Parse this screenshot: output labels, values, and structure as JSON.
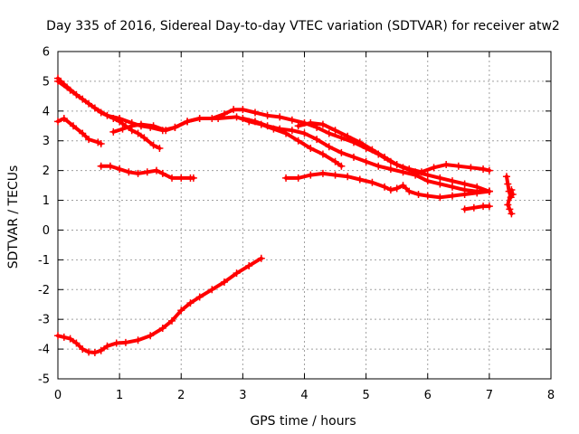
{
  "chart_data": {
    "type": "scatter",
    "title": "Day 335 of 2016, Sidereal Day-to-day VTEC variation (SDTVAR) for receiver atw2",
    "xlabel": "GPS time / hours",
    "ylabel": "SDTVAR / TECUs",
    "xlim": [
      0,
      8
    ],
    "ylim": [
      -5,
      6
    ],
    "x_ticks": [
      "0",
      "1",
      "2",
      "3",
      "4",
      "5",
      "6",
      "7",
      "8"
    ],
    "y_ticks": [
      "-5",
      "-4",
      "-3",
      "-2",
      "-1",
      "0",
      "1",
      "2",
      "3",
      "4",
      "5",
      "6"
    ],
    "grid": true,
    "legend": "none",
    "marker": "plus",
    "color": "#ff0000",
    "series": [
      {
        "points": [
          [
            0.0,
            5.1
          ],
          [
            0.1,
            4.9
          ],
          [
            0.3,
            4.55
          ],
          [
            0.5,
            4.25
          ],
          [
            0.7,
            3.95
          ],
          [
            0.9,
            3.75
          ],
          [
            1.0,
            3.65
          ],
          [
            1.1,
            3.5
          ],
          [
            1.2,
            3.35
          ],
          [
            1.3,
            3.25
          ],
          [
            1.4,
            3.1
          ],
          [
            1.55,
            2.85
          ],
          [
            1.65,
            2.75
          ]
        ]
      },
      {
        "points": [
          [
            0.0,
            5.0
          ],
          [
            0.2,
            4.7
          ],
          [
            0.4,
            4.4
          ],
          [
            0.6,
            4.1
          ],
          [
            0.8,
            3.85
          ],
          [
            1.0,
            3.75
          ],
          [
            1.2,
            3.6
          ],
          [
            1.35,
            3.5
          ],
          [
            1.5,
            3.45
          ],
          [
            1.7,
            3.35
          ],
          [
            1.9,
            3.45
          ],
          [
            2.1,
            3.65
          ],
          [
            2.3,
            3.75
          ],
          [
            2.6,
            3.75
          ],
          [
            2.9,
            3.8
          ],
          [
            3.1,
            3.65
          ],
          [
            3.3,
            3.55
          ],
          [
            3.5,
            3.4
          ],
          [
            3.7,
            3.25
          ],
          [
            3.9,
            3.0
          ],
          [
            4.1,
            2.75
          ],
          [
            4.3,
            2.55
          ],
          [
            4.5,
            2.3
          ],
          [
            4.6,
            2.15
          ]
        ]
      },
      {
        "points": [
          [
            0.0,
            3.65
          ],
          [
            0.1,
            3.75
          ],
          [
            0.25,
            3.5
          ],
          [
            0.4,
            3.25
          ],
          [
            0.5,
            3.05
          ],
          [
            0.65,
            2.95
          ],
          [
            0.7,
            2.9
          ]
        ]
      },
      {
        "points": [
          [
            0.7,
            2.15
          ],
          [
            0.85,
            2.15
          ],
          [
            1.0,
            2.05
          ],
          [
            1.15,
            1.95
          ],
          [
            1.3,
            1.9
          ],
          [
            1.45,
            1.95
          ],
          [
            1.6,
            2.0
          ],
          [
            1.7,
            1.9
          ],
          [
            1.85,
            1.75
          ],
          [
            2.0,
            1.75
          ],
          [
            2.15,
            1.75
          ],
          [
            2.2,
            1.75
          ]
        ]
      },
      {
        "points": [
          [
            0.9,
            3.3
          ],
          [
            1.05,
            3.4
          ],
          [
            1.2,
            3.5
          ],
          [
            1.35,
            3.55
          ],
          [
            1.55,
            3.5
          ],
          [
            1.75,
            3.35
          ],
          [
            1.9,
            3.45
          ],
          [
            2.1,
            3.65
          ],
          [
            2.3,
            3.75
          ],
          [
            2.5,
            3.75
          ],
          [
            2.7,
            3.9
          ],
          [
            2.85,
            4.05
          ],
          [
            3.0,
            4.05
          ],
          [
            3.2,
            3.95
          ],
          [
            3.4,
            3.85
          ],
          [
            3.6,
            3.8
          ],
          [
            3.8,
            3.7
          ],
          [
            4.0,
            3.6
          ],
          [
            4.2,
            3.45
          ],
          [
            4.4,
            3.25
          ],
          [
            4.6,
            3.1
          ],
          [
            4.8,
            2.95
          ],
          [
            5.0,
            2.75
          ],
          [
            5.2,
            2.55
          ],
          [
            5.4,
            2.3
          ],
          [
            5.6,
            2.1
          ],
          [
            5.8,
            1.95
          ],
          [
            6.0,
            1.85
          ],
          [
            6.2,
            1.75
          ],
          [
            6.4,
            1.65
          ],
          [
            6.6,
            1.55
          ],
          [
            6.8,
            1.45
          ],
          [
            7.0,
            1.3
          ]
        ]
      },
      {
        "points": [
          [
            3.0,
            3.75
          ],
          [
            3.2,
            3.65
          ],
          [
            3.4,
            3.5
          ],
          [
            3.6,
            3.4
          ],
          [
            3.8,
            3.35
          ],
          [
            4.0,
            3.25
          ],
          [
            4.2,
            3.05
          ],
          [
            4.4,
            2.8
          ],
          [
            4.6,
            2.6
          ],
          [
            4.8,
            2.45
          ],
          [
            5.0,
            2.3
          ],
          [
            5.2,
            2.15
          ],
          [
            5.4,
            2.05
          ],
          [
            5.6,
            1.95
          ],
          [
            5.8,
            1.85
          ],
          [
            6.0,
            1.65
          ],
          [
            6.2,
            1.55
          ],
          [
            6.4,
            1.45
          ],
          [
            6.6,
            1.35
          ],
          [
            6.8,
            1.3
          ],
          [
            7.0,
            1.3
          ]
        ]
      },
      {
        "points": [
          [
            3.7,
            1.75
          ],
          [
            3.9,
            1.75
          ],
          [
            4.1,
            1.85
          ],
          [
            4.3,
            1.9
          ],
          [
            4.5,
            1.85
          ],
          [
            4.7,
            1.8
          ],
          [
            4.9,
            1.7
          ],
          [
            5.1,
            1.6
          ],
          [
            5.3,
            1.45
          ],
          [
            5.4,
            1.35
          ],
          [
            5.5,
            1.4
          ],
          [
            5.6,
            1.5
          ],
          [
            5.7,
            1.3
          ],
          [
            5.85,
            1.2
          ],
          [
            6.0,
            1.15
          ],
          [
            6.2,
            1.1
          ],
          [
            6.4,
            1.15
          ],
          [
            6.6,
            1.2
          ],
          [
            6.8,
            1.25
          ],
          [
            7.0,
            1.3
          ]
        ]
      },
      {
        "points": [
          [
            3.9,
            3.5
          ],
          [
            4.1,
            3.6
          ],
          [
            4.3,
            3.55
          ],
          [
            4.5,
            3.35
          ],
          [
            4.7,
            3.15
          ],
          [
            4.9,
            2.95
          ],
          [
            5.1,
            2.7
          ],
          [
            5.3,
            2.45
          ],
          [
            5.5,
            2.2
          ],
          [
            5.7,
            2.05
          ],
          [
            5.9,
            1.95
          ],
          [
            6.1,
            2.1
          ],
          [
            6.3,
            2.2
          ],
          [
            6.5,
            2.15
          ],
          [
            6.7,
            2.1
          ],
          [
            6.9,
            2.05
          ],
          [
            7.0,
            2.0
          ]
        ]
      },
      {
        "points": [
          [
            6.6,
            0.7
          ],
          [
            6.75,
            0.75
          ],
          [
            6.9,
            0.8
          ],
          [
            7.0,
            0.8
          ]
        ]
      },
      {
        "points": [
          [
            7.28,
            1.8
          ],
          [
            7.3,
            1.55
          ],
          [
            7.32,
            1.3
          ],
          [
            7.35,
            1.1
          ],
          [
            7.38,
            1.2
          ],
          [
            7.36,
            1.35
          ],
          [
            7.3,
            0.85
          ],
          [
            7.33,
            0.7
          ],
          [
            7.36,
            0.55
          ]
        ]
      },
      {
        "points": [
          [
            0.0,
            -3.55
          ],
          [
            0.1,
            -3.6
          ],
          [
            0.2,
            -3.65
          ],
          [
            0.3,
            -3.8
          ],
          [
            0.4,
            -4.0
          ],
          [
            0.5,
            -4.1
          ],
          [
            0.6,
            -4.12
          ],
          [
            0.7,
            -4.05
          ],
          [
            0.8,
            -3.9
          ],
          [
            0.95,
            -3.8
          ],
          [
            1.1,
            -3.78
          ],
          [
            1.3,
            -3.7
          ],
          [
            1.5,
            -3.55
          ],
          [
            1.7,
            -3.3
          ],
          [
            1.85,
            -3.05
          ],
          [
            2.0,
            -2.7
          ],
          [
            2.15,
            -2.45
          ],
          [
            2.3,
            -2.25
          ],
          [
            2.5,
            -2.0
          ],
          [
            2.7,
            -1.75
          ],
          [
            2.9,
            -1.45
          ],
          [
            3.1,
            -1.2
          ],
          [
            3.3,
            -0.95
          ]
        ]
      }
    ]
  }
}
